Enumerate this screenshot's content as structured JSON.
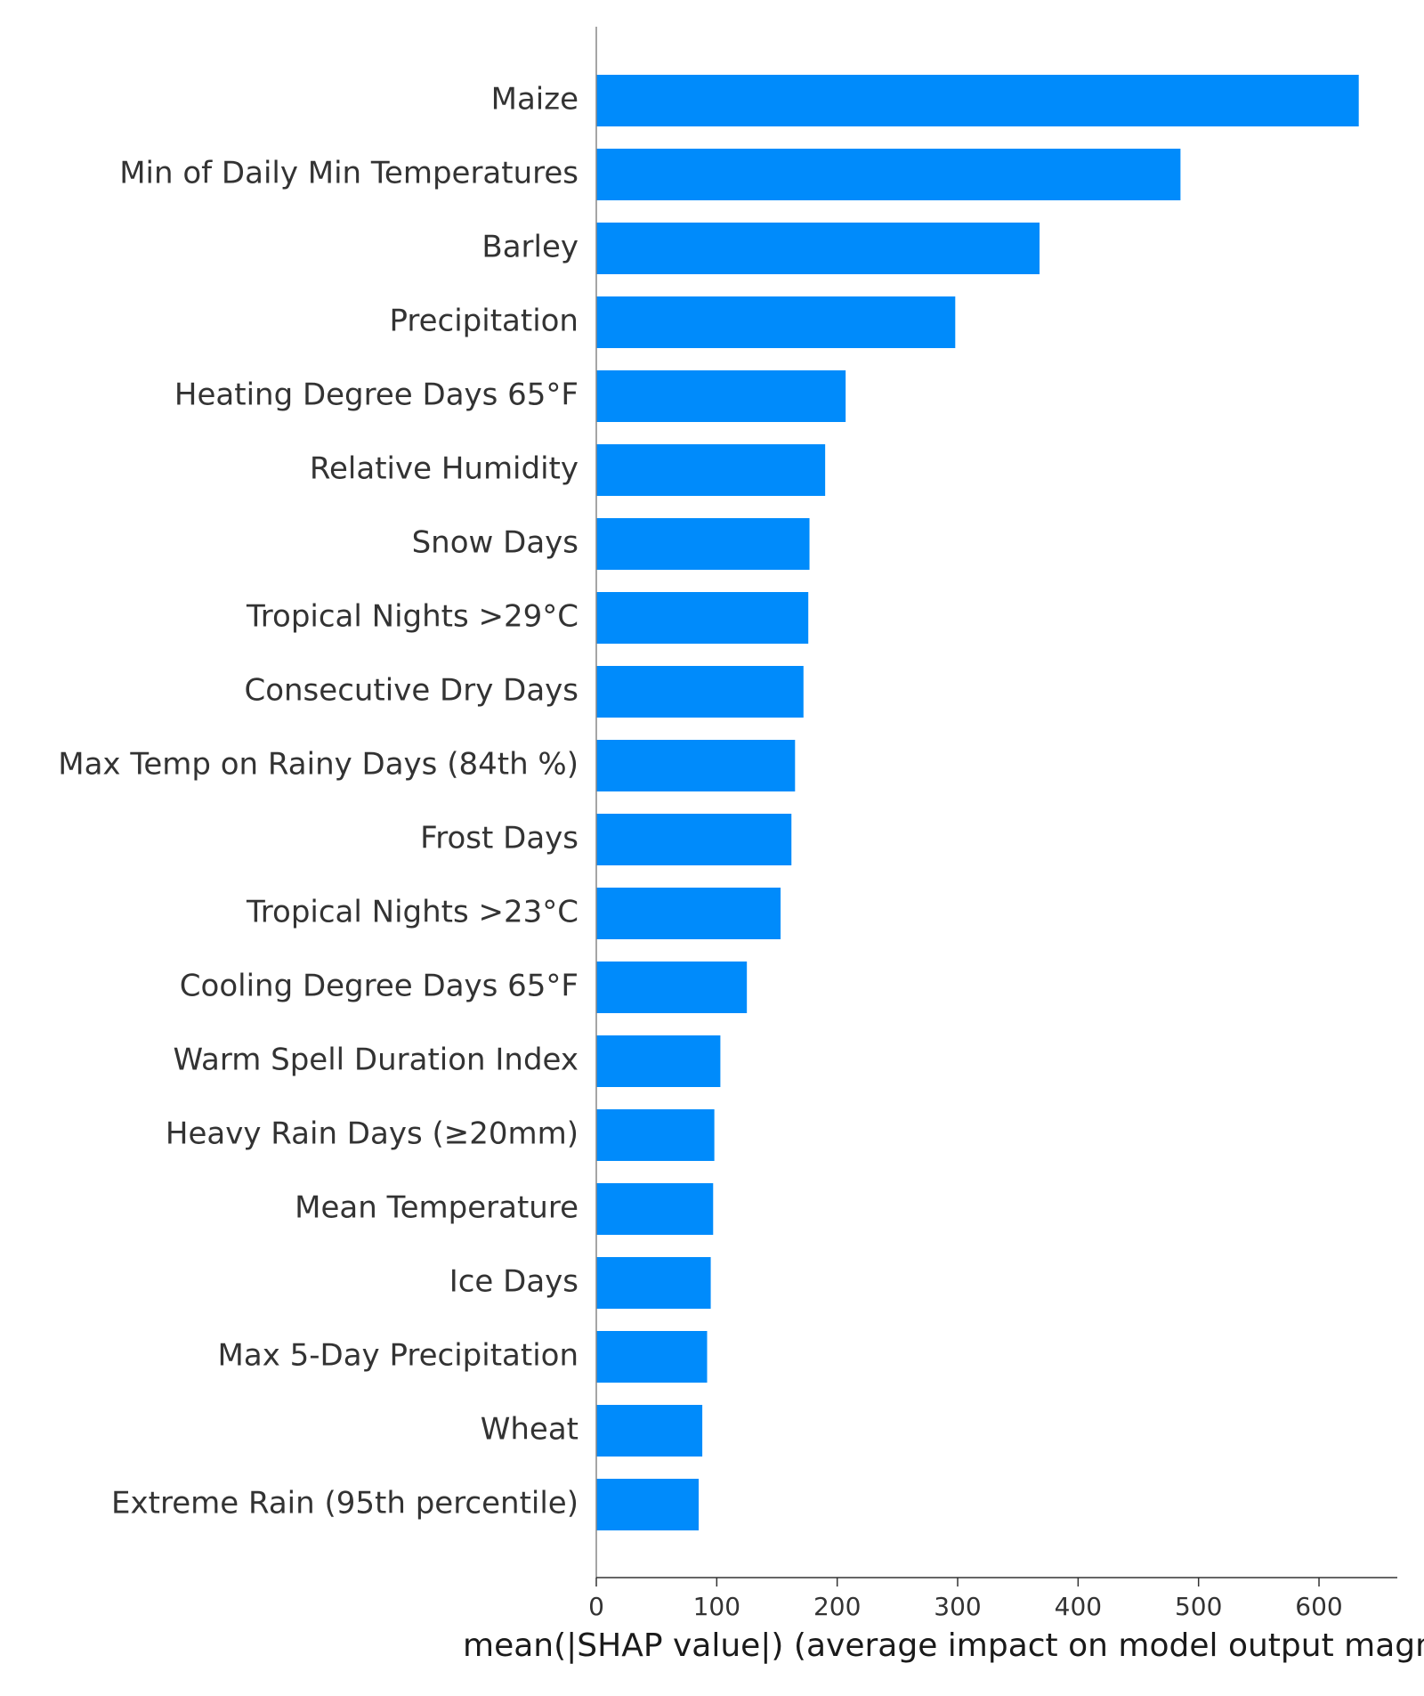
{
  "chart_data": {
    "type": "bar",
    "orientation": "horizontal",
    "title": "",
    "xlabel": "mean(|SHAP value|) (average impact on model output magnitude)",
    "ylabel": "",
    "xlim": [
      0,
      665
    ],
    "xticks": [
      0,
      100,
      200,
      300,
      400,
      500,
      600
    ],
    "grid": false,
    "bar_color": "#008bfb",
    "categories": [
      "Maize",
      "Min of Daily Min Temperatures",
      "Barley",
      "Precipitation",
      "Heating Degree Days 65°F",
      "Relative Humidity",
      "Snow Days",
      "Tropical Nights >29°C",
      "Consecutive Dry Days",
      "Max Temp on Rainy Days (84th %)",
      "Frost Days",
      "Tropical Nights >23°C",
      "Cooling Degree Days 65°F",
      "Warm Spell Duration Index",
      "Heavy Rain Days (≥20mm)",
      "Mean Temperature",
      "Ice Days",
      "Max 5-Day Precipitation",
      "Wheat",
      "Extreme Rain (95th percentile)"
    ],
    "values": [
      633,
      485,
      368,
      298,
      207,
      190,
      177,
      176,
      172,
      165,
      162,
      153,
      125,
      103,
      98,
      97,
      95,
      92,
      88,
      85
    ]
  }
}
